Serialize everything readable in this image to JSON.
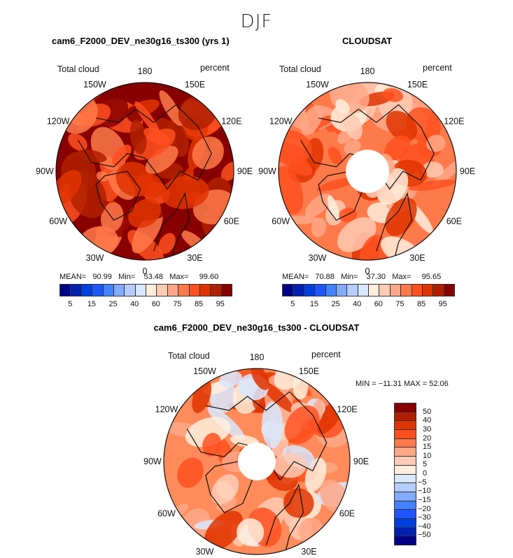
{
  "season": "DJF",
  "panels": [
    {
      "title": "cam6_F2000_DEV_ne30g16_ts300 (yrs 1)",
      "variable": "Total cloud",
      "units": "percent",
      "mean_label": "MEAN=",
      "mean": "90.99",
      "min_label": "Min=",
      "min": "53.48",
      "max_label": "Max=",
      "max": "99.60"
    },
    {
      "title": "CLOUDSAT",
      "variable": "Total cloud",
      "units": "percent",
      "mean_label": "MEAN=",
      "mean": "70.88",
      "min_label": "Min=",
      "min": "37.30",
      "max_label": "Max=",
      "max": "95.65"
    },
    {
      "title": "cam6_F2000_DEV_ne30g16_ts300 - CLOUDSAT",
      "variable": "Total cloud",
      "units": "percent",
      "minmax_text": "MIN = −11.31 MAX =  52.06"
    }
  ],
  "longitude_labels": [
    "180",
    "150E",
    "120E",
    "90E",
    "60E",
    "30E",
    "0",
    "30W",
    "60W",
    "90W",
    "120W",
    "150W"
  ],
  "colorbar_abs": {
    "ticks": [
      "5",
      "15",
      "25",
      "40",
      "60",
      "75",
      "85",
      "95"
    ],
    "colors": [
      "#00008a",
      "#0022b0",
      "#0040e0",
      "#1f55ff",
      "#4282ff",
      "#82aaff",
      "#b4ccff",
      "#d8e8ff",
      "#ffeedd",
      "#ffcbb4",
      "#ffa888",
      "#ff7a4a",
      "#ff5020",
      "#e03400",
      "#b02000",
      "#880000"
    ]
  },
  "colorbar_diff": {
    "ticks": [
      "50",
      "40",
      "30",
      "20",
      "15",
      "10",
      "5",
      "0",
      "−5",
      "−10",
      "−15",
      "−20",
      "−30",
      "−40",
      "−50"
    ],
    "colors": [
      "#880000",
      "#b02000",
      "#e03400",
      "#ff5020",
      "#ff7a4a",
      "#ffa888",
      "#ffcbb4",
      "#ffeedd",
      "#d8e8ff",
      "#b4ccff",
      "#82aaff",
      "#4282ff",
      "#1f55ff",
      "#0040e0",
      "#0022b0",
      "#00008a"
    ]
  }
}
